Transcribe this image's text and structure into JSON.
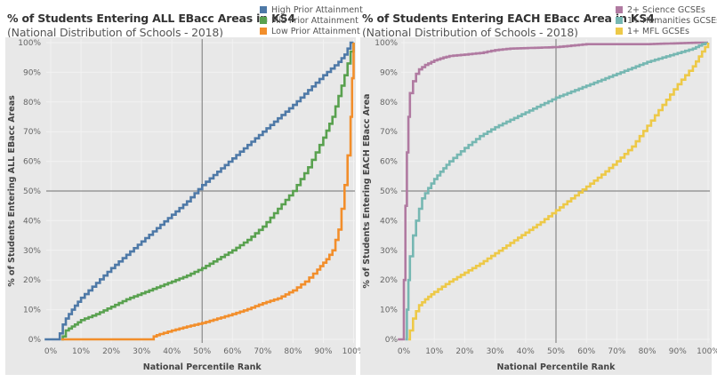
{
  "colors": {
    "high": "#4e79a7",
    "mid": "#59a14f",
    "low": "#f28e2b",
    "science": "#b07aa1",
    "humanities": "#76b7b2",
    "mfl": "#edc948",
    "panel_bg": "#e8e8e8",
    "reference_line": "#888888",
    "grid": "#f2f2f2"
  },
  "chart_data": [
    {
      "type": "line",
      "title": "% of Students Entering ALL EBacc Areas in KS4",
      "subtitle": "(National Distribution of Schools - 2018)",
      "xlabel": "National Percentile Rank",
      "ylabel": "% of Students Entering ALL EBacc Areas",
      "xlim": [
        -2,
        100
      ],
      "ylim": [
        0,
        100
      ],
      "x_ticks": [
        "0%",
        "10%",
        "20%",
        "30%",
        "40%",
        "50%",
        "60%",
        "70%",
        "80%",
        "90%",
        "100%"
      ],
      "y_ticks": [
        "0%",
        "10%",
        "20%",
        "30%",
        "40%",
        "50%",
        "60%",
        "70%",
        "80%",
        "90%",
        "100%"
      ],
      "reference_lines": {
        "x": 50,
        "y": 50
      },
      "grid": true,
      "legend": "top-right",
      "series": [
        {
          "name": "High Prior Attainment",
          "color_key": "high",
          "x": [
            -2,
            2.5,
            3,
            4,
            5,
            7,
            10,
            15,
            20,
            25,
            30,
            35,
            40,
            45,
            50,
            55,
            60,
            65,
            70,
            75,
            80,
            85,
            90,
            95,
            97,
            98,
            99,
            100
          ],
          "y": [
            0,
            0,
            2,
            5,
            7,
            10,
            14,
            19,
            24,
            28.5,
            33,
            37.5,
            42,
            46.5,
            52,
            56.5,
            61,
            65.5,
            70,
            74.5,
            79,
            84,
            89,
            93.5,
            96,
            98,
            100,
            100
          ]
        },
        {
          "name": "Mid Prior Attainment",
          "color_key": "mid",
          "x": [
            3.5,
            4,
            5,
            8,
            10,
            15,
            20,
            25,
            30,
            35,
            40,
            45,
            50,
            55,
            60,
            65,
            70,
            75,
            80,
            85,
            90,
            93,
            95,
            97,
            98,
            99,
            100
          ],
          "y": [
            0,
            1,
            3,
            5,
            6.5,
            8.5,
            11,
            13.5,
            15.5,
            17.5,
            19.5,
            21.5,
            24,
            27,
            30,
            33.5,
            38,
            44,
            50,
            58,
            68,
            75,
            82,
            89,
            93,
            97,
            100
          ]
        },
        {
          "name": "Low Prior Attainment",
          "color_key": "low",
          "x": [
            3.5,
            33.5,
            34,
            36,
            40,
            45,
            50,
            55,
            60,
            65,
            70,
            75,
            80,
            84,
            88,
            91,
            93,
            95,
            96,
            97,
            98,
            99,
            99.5,
            100
          ],
          "y": [
            0,
            0,
            1,
            1.8,
            3,
            4.3,
            5.5,
            7,
            8.5,
            10.2,
            12.2,
            13.8,
            16.5,
            19.5,
            23.5,
            27,
            30,
            37,
            44,
            52,
            62,
            75,
            88,
            100
          ]
        }
      ]
    },
    {
      "type": "line",
      "title": "% of Students Entering EACH EBacc Area in KS4",
      "subtitle": "(National Distribution of Schools - 2018)",
      "xlabel": "National Percentile Rank",
      "ylabel": "% of Students Entering EACH EBacc Area",
      "xlim": [
        -2,
        100
      ],
      "ylim": [
        0,
        100
      ],
      "x_ticks": [
        "0%",
        "10%",
        "20%",
        "30%",
        "40%",
        "50%",
        "60%",
        "70%",
        "80%",
        "90%",
        "100%"
      ],
      "y_ticks": [
        "0%",
        "10%",
        "20%",
        "30%",
        "40%",
        "50%",
        "60%",
        "70%",
        "80%",
        "90%",
        "100%"
      ],
      "reference_lines": {
        "x": 50,
        "y": 50
      },
      "grid": true,
      "legend": "top-right",
      "series": [
        {
          "name": "2+ Science GCSEs",
          "color_key": "science",
          "x": [
            -2,
            -0.5,
            0,
            0.5,
            1,
            1.5,
            2,
            3,
            4,
            5,
            7,
            10,
            13,
            15,
            20,
            25,
            30,
            35,
            50,
            55,
            60,
            70,
            80,
            90,
            97,
            100
          ],
          "y": [
            0,
            0,
            20,
            45,
            63,
            75,
            83,
            87,
            89.5,
            91,
            92.5,
            94,
            95,
            95.5,
            96,
            96.5,
            97.5,
            98,
            98.5,
            99,
            99.5,
            99.5,
            99.5,
            99.8,
            100,
            100
          ]
        },
        {
          "name": "1+ Humanities GCSEs",
          "color_key": "humanities",
          "x": [
            0.5,
            1,
            1.5,
            2,
            3,
            4,
            5,
            6,
            8,
            10,
            12,
            15,
            20,
            25,
            30,
            35,
            40,
            45,
            50,
            55,
            60,
            65,
            70,
            75,
            80,
            85,
            90,
            95,
            98,
            100
          ],
          "y": [
            0,
            10,
            20,
            28,
            35,
            40,
            44,
            47.5,
            51,
            54,
            56.5,
            60,
            64.5,
            68.5,
            71.5,
            74,
            76.5,
            79,
            81.5,
            83.5,
            85.5,
            87.5,
            89.5,
            91.5,
            93.5,
            95,
            96.5,
            98,
            99.5,
            100
          ]
        },
        {
          "name": "1+ MFL GCSEs",
          "color_key": "mfl",
          "x": [
            1.5,
            2,
            3,
            4,
            5,
            7,
            10,
            15,
            20,
            25,
            30,
            35,
            40,
            45,
            50,
            55,
            60,
            65,
            70,
            75,
            80,
            85,
            90,
            95,
            98,
            100
          ],
          "y": [
            0,
            3,
            7,
            9.5,
            11.5,
            13.5,
            16,
            19.5,
            22.5,
            25.5,
            29,
            32.5,
            36,
            39.5,
            43.5,
            47.5,
            51.5,
            55.5,
            60,
            65,
            72,
            79,
            86,
            92,
            97,
            100
          ]
        }
      ]
    }
  ]
}
